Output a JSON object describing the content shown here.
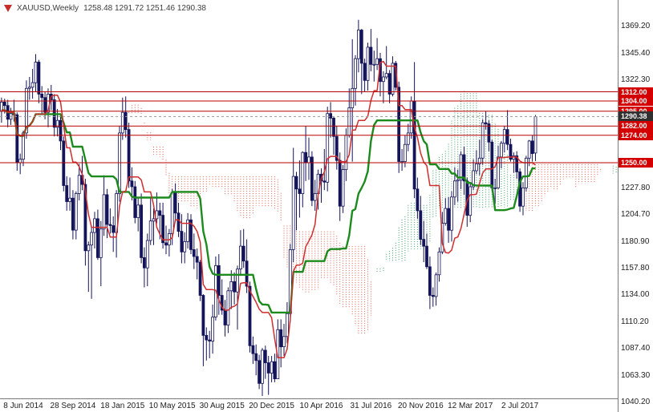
{
  "header": {
    "symbol_timeframe": "XAUUSD,Weekly",
    "ohlc_text": "1258.48 1291.72 1251.46 1290.38"
  },
  "chart_data": {
    "type": "candlestick",
    "symbol": "XAUUSD",
    "timeframe": "Weekly",
    "last_bar": {
      "open": 1258.48,
      "high": 1291.72,
      "low": 1251.46,
      "close": 1290.38
    },
    "y_axis": {
      "ticks": [
        1369.2,
        1345.4,
        1322.3,
        1227.8,
        1204.7,
        1180.9,
        1157.8,
        1134.0,
        1110.2,
        1087.4,
        1063.3,
        1040.2
      ],
      "line_levels": [
        1312.0,
        1304.0,
        1295.0,
        1282.0,
        1274.0,
        1250.0
      ],
      "current_price": 1290.38,
      "range_top": 1392.3,
      "range_bottom": 1043.9
    },
    "x_axis": {
      "labels": [
        {
          "text": "8 Jun 2014",
          "index": 7
        },
        {
          "text": "28 Sep 2014",
          "index": 23
        },
        {
          "text": "18 Jan 2015",
          "index": 39
        },
        {
          "text": "10 May 2015",
          "index": 55
        },
        {
          "text": "30 Aug 2015",
          "index": 71
        },
        {
          "text": "20 Dec 2015",
          "index": 87
        },
        {
          "text": "10 Apr 2016",
          "index": 103
        },
        {
          "text": "31 Jul 2016",
          "index": 119
        },
        {
          "text": "20 Nov 2016",
          "index": 135
        },
        {
          "text": "12 Mar 2017",
          "index": 151
        },
        {
          "text": "2 Jul 2017",
          "index": 167
        }
      ]
    },
    "indicator": {
      "name": "Ichimoku Kinko Hyo",
      "tenkan": 9,
      "kijun": 26,
      "senkou_b": 52,
      "shift": 26
    },
    "colors": {
      "wick": "#14145a",
      "bull_body": "#ffffff",
      "bear_body": "#14145a",
      "tenkan": "#cf2e2e",
      "kijun": "#1c8a1c",
      "kumo_bear": "#e06050",
      "kumo_bull": "#3f9e63",
      "level_line": "#b80000",
      "badge_red": "#d40000",
      "badge_dark": "#303030"
    },
    "candles": [
      [
        1295,
        1307,
        1285,
        1303
      ],
      [
        1303,
        1306,
        1293,
        1300
      ],
      [
        1300,
        1305,
        1281,
        1288
      ],
      [
        1288,
        1298,
        1283,
        1293
      ],
      [
        1293,
        1305,
        1286,
        1292
      ],
      [
        1292,
        1294,
        1243,
        1250
      ],
      [
        1250,
        1258,
        1240,
        1253
      ],
      [
        1253,
        1278,
        1247,
        1276
      ],
      [
        1276,
        1322,
        1271,
        1315
      ],
      [
        1315,
        1325,
        1305,
        1316
      ],
      [
        1316,
        1332,
        1306,
        1320
      ],
      [
        1320,
        1345,
        1312,
        1338
      ],
      [
        1338,
        1340,
        1302,
        1310
      ],
      [
        1310,
        1317,
        1293,
        1307
      ],
      [
        1307,
        1312,
        1288,
        1294
      ],
      [
        1294,
        1315,
        1281,
        1310
      ],
      [
        1310,
        1318,
        1296,
        1305
      ],
      [
        1305,
        1310,
        1273,
        1281
      ],
      [
        1281,
        1297,
        1273,
        1287
      ],
      [
        1287,
        1290,
        1261,
        1269
      ],
      [
        1269,
        1273,
        1225,
        1230
      ],
      [
        1230,
        1238,
        1208,
        1216
      ],
      [
        1216,
        1237,
        1208,
        1219
      ],
      [
        1219,
        1226,
        1183,
        1191
      ],
      [
        1191,
        1225,
        1183,
        1223
      ],
      [
        1223,
        1249,
        1217,
        1239
      ],
      [
        1239,
        1256,
        1226,
        1231
      ],
      [
        1231,
        1236,
        1160,
        1173
      ],
      [
        1173,
        1181,
        1137,
        1178
      ],
      [
        1178,
        1194,
        1131,
        1189
      ],
      [
        1189,
        1207,
        1175,
        1201
      ],
      [
        1201,
        1209,
        1165,
        1167
      ],
      [
        1167,
        1199,
        1142,
        1192
      ],
      [
        1192,
        1239,
        1186,
        1222
      ],
      [
        1222,
        1227,
        1184,
        1196
      ],
      [
        1196,
        1210,
        1188,
        1195
      ],
      [
        1195,
        1203,
        1172,
        1189
      ],
      [
        1189,
        1226,
        1167,
        1223
      ],
      [
        1223,
        1282,
        1216,
        1276
      ],
      [
        1276,
        1307,
        1270,
        1294
      ],
      [
        1294,
        1308,
        1272,
        1279
      ],
      [
        1279,
        1285,
        1228,
        1234
      ],
      [
        1234,
        1246,
        1217,
        1229
      ],
      [
        1229,
        1234,
        1197,
        1202
      ],
      [
        1202,
        1220,
        1190,
        1213
      ],
      [
        1213,
        1223,
        1162,
        1167
      ],
      [
        1167,
        1176,
        1141,
        1158
      ],
      [
        1158,
        1188,
        1142,
        1182
      ],
      [
        1182,
        1220,
        1178,
        1199
      ],
      [
        1199,
        1210,
        1178,
        1201
      ],
      [
        1201,
        1224,
        1197,
        1208
      ],
      [
        1208,
        1215,
        1183,
        1204
      ],
      [
        1204,
        1215,
        1175,
        1180
      ],
      [
        1180,
        1195,
        1170,
        1178
      ],
      [
        1178,
        1192,
        1168,
        1188
      ],
      [
        1188,
        1227,
        1178,
        1224
      ],
      [
        1224,
        1232,
        1198,
        1206
      ],
      [
        1206,
        1215,
        1185,
        1190
      ],
      [
        1190,
        1205,
        1162,
        1172
      ],
      [
        1172,
        1189,
        1162,
        1181
      ],
      [
        1181,
        1206,
        1175,
        1200
      ],
      [
        1200,
        1205,
        1170,
        1174
      ],
      [
        1174,
        1188,
        1157,
        1168
      ],
      [
        1168,
        1175,
        1148,
        1163
      ],
      [
        1163,
        1165,
        1129,
        1134
      ],
      [
        1134,
        1135,
        1072,
        1099
      ],
      [
        1099,
        1106,
        1077,
        1095
      ],
      [
        1095,
        1103,
        1079,
        1094
      ],
      [
        1094,
        1126,
        1083,
        1115
      ],
      [
        1115,
        1168,
        1112,
        1160
      ],
      [
        1160,
        1170,
        1117,
        1134
      ],
      [
        1134,
        1148,
        1117,
        1121
      ],
      [
        1121,
        1130,
        1098,
        1108
      ],
      [
        1108,
        1141,
        1101,
        1138
      ],
      [
        1138,
        1156,
        1122,
        1146
      ],
      [
        1146,
        1154,
        1126,
        1137
      ],
      [
        1137,
        1160,
        1104,
        1157
      ],
      [
        1157,
        1191,
        1151,
        1177
      ],
      [
        1177,
        1192,
        1158,
        1164
      ],
      [
        1164,
        1183,
        1136,
        1142
      ],
      [
        1142,
        1146,
        1084,
        1090
      ],
      [
        1090,
        1098,
        1074,
        1083
      ],
      [
        1083,
        1091,
        1064,
        1077
      ],
      [
        1077,
        1082,
        1052,
        1057
      ],
      [
        1057,
        1088,
        1046,
        1086
      ],
      [
        1086,
        1090,
        1061,
        1075
      ],
      [
        1075,
        1081,
        1047,
        1066
      ],
      [
        1066,
        1081,
        1058,
        1076
      ],
      [
        1076,
        1083,
        1058,
        1061
      ],
      [
        1061,
        1113,
        1061,
        1104
      ],
      [
        1104,
        1113,
        1071,
        1089
      ],
      [
        1089,
        1109,
        1081,
        1098
      ],
      [
        1098,
        1128,
        1092,
        1118
      ],
      [
        1118,
        1179,
        1110,
        1174
      ],
      [
        1174,
        1263,
        1163,
        1238
      ],
      [
        1238,
        1242,
        1191,
        1227
      ],
      [
        1227,
        1252,
        1202,
        1223
      ],
      [
        1223,
        1260,
        1211,
        1259
      ],
      [
        1259,
        1282,
        1234,
        1250
      ],
      [
        1250,
        1272,
        1235,
        1255
      ],
      [
        1255,
        1260,
        1212,
        1217
      ],
      [
        1217,
        1235,
        1208,
        1223
      ],
      [
        1223,
        1244,
        1209,
        1240
      ],
      [
        1240,
        1245,
        1215,
        1234
      ],
      [
        1234,
        1262,
        1226,
        1233
      ],
      [
        1233,
        1299,
        1225,
        1293
      ],
      [
        1293,
        1303,
        1272,
        1289
      ],
      [
        1289,
        1290,
        1257,
        1273
      ],
      [
        1273,
        1282,
        1244,
        1252
      ],
      [
        1252,
        1259,
        1199,
        1212
      ],
      [
        1212,
        1248,
        1206,
        1244
      ],
      [
        1244,
        1280,
        1234,
        1274
      ],
      [
        1274,
        1315,
        1272,
        1298
      ],
      [
        1298,
        1358,
        1251,
        1315
      ],
      [
        1315,
        1344,
        1300,
        1341
      ],
      [
        1341,
        1375,
        1329,
        1366
      ],
      [
        1366,
        1367,
        1310,
        1337
      ],
      [
        1337,
        1341,
        1312,
        1322
      ],
      [
        1322,
        1355,
        1313,
        1351
      ],
      [
        1351,
        1367,
        1330,
        1336
      ],
      [
        1336,
        1348,
        1321,
        1336
      ],
      [
        1336,
        1359,
        1331,
        1341
      ],
      [
        1341,
        1346,
        1308,
        1321
      ],
      [
        1321,
        1330,
        1302,
        1325
      ],
      [
        1325,
        1352,
        1323,
        1328
      ],
      [
        1328,
        1331,
        1302,
        1310
      ],
      [
        1310,
        1343,
        1308,
        1337
      ],
      [
        1337,
        1339,
        1313,
        1316
      ],
      [
        1316,
        1321,
        1241,
        1251
      ],
      [
        1251,
        1262,
        1243,
        1251
      ],
      [
        1251,
        1274,
        1246,
        1266
      ],
      [
        1266,
        1284,
        1260,
        1276
      ],
      [
        1276,
        1308,
        1271,
        1304
      ],
      [
        1304,
        1338,
        1219,
        1227
      ],
      [
        1227,
        1237,
        1201,
        1208
      ],
      [
        1208,
        1221,
        1178,
        1183
      ],
      [
        1183,
        1199,
        1163,
        1177
      ],
      [
        1177,
        1188,
        1157,
        1159
      ],
      [
        1159,
        1168,
        1122,
        1134
      ],
      [
        1134,
        1141,
        1124,
        1133
      ],
      [
        1133,
        1154,
        1125,
        1152
      ],
      [
        1152,
        1176,
        1146,
        1172
      ],
      [
        1172,
        1207,
        1170,
        1197
      ],
      [
        1197,
        1219,
        1195,
        1210
      ],
      [
        1210,
        1220,
        1180,
        1191
      ],
      [
        1191,
        1225,
        1181,
        1220
      ],
      [
        1220,
        1246,
        1213,
        1234
      ],
      [
        1234,
        1244,
        1216,
        1235
      ],
      [
        1235,
        1260,
        1227,
        1257
      ],
      [
        1257,
        1264,
        1222,
        1234
      ],
      [
        1234,
        1237,
        1194,
        1204
      ],
      [
        1204,
        1233,
        1198,
        1229
      ],
      [
        1229,
        1253,
        1226,
        1243
      ],
      [
        1243,
        1261,
        1240,
        1249
      ],
      [
        1249,
        1270,
        1239,
        1254
      ],
      [
        1254,
        1288,
        1248,
        1285
      ],
      [
        1285,
        1295,
        1279,
        1284
      ],
      [
        1284,
        1287,
        1260,
        1268
      ],
      [
        1268,
        1270,
        1225,
        1228
      ],
      [
        1228,
        1236,
        1214,
        1228
      ],
      [
        1228,
        1265,
        1227,
        1255
      ],
      [
        1255,
        1269,
        1245,
        1267
      ],
      [
        1267,
        1282,
        1259,
        1279
      ],
      [
        1279,
        1296,
        1261,
        1266
      ],
      [
        1266,
        1271,
        1251,
        1253
      ],
      [
        1253,
        1259,
        1241,
        1256
      ],
      [
        1256,
        1260,
        1236,
        1242
      ],
      [
        1242,
        1245,
        1207,
        1212
      ],
      [
        1212,
        1233,
        1204,
        1228
      ],
      [
        1228,
        1256,
        1225,
        1254
      ],
      [
        1254,
        1270,
        1247,
        1269
      ],
      [
        1269,
        1274,
        1251,
        1258
      ],
      [
        1258.48,
        1291.72,
        1251.46,
        1290.38
      ]
    ]
  }
}
